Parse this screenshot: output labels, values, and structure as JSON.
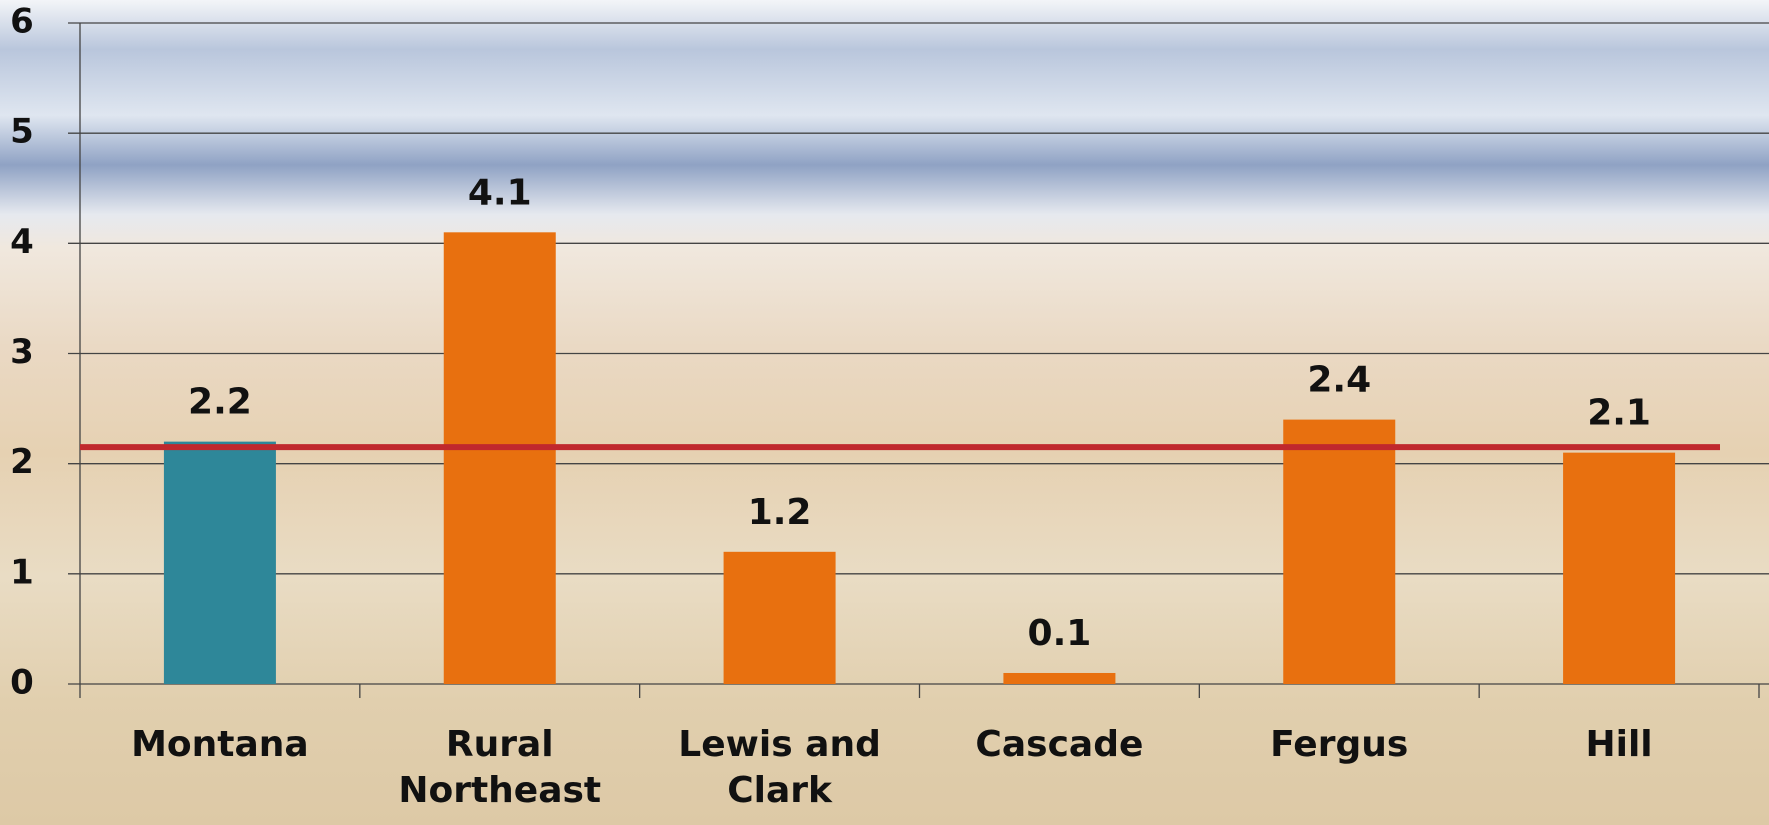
{
  "chart_data": {
    "type": "bar",
    "categories": [
      "Montana",
      "Rural Northeast",
      "Lewis and Clark",
      "Cascade",
      "Fergus",
      "Hill"
    ],
    "values": [
      2.2,
      4.1,
      1.2,
      0.1,
      2.4,
      2.1
    ],
    "colors": [
      "#2e8799",
      "#e8700f",
      "#e8700f",
      "#e8700f",
      "#e8700f",
      "#e8700f"
    ],
    "ylim": [
      0,
      6
    ],
    "yticks": [
      0,
      1,
      2,
      3,
      4,
      5,
      6
    ],
    "grid": true,
    "reference_line": {
      "value": 2.15,
      "color": "#c0282d"
    }
  }
}
